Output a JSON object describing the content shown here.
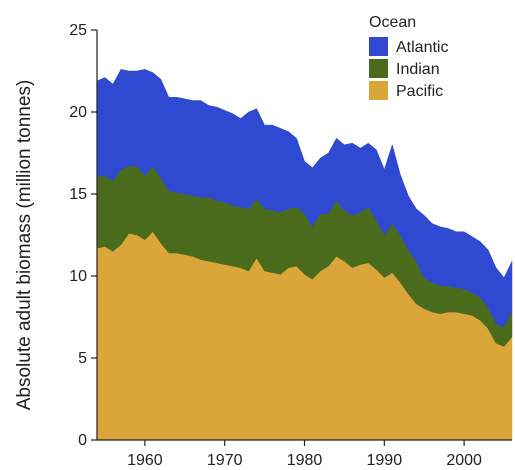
{
  "chart_data": {
    "type": "area",
    "stacked": true,
    "title": "",
    "xlabel": "",
    "ylabel": "Absolute adult biomass (million tonnes)",
    "xlim": [
      1954,
      2006
    ],
    "ylim": [
      0,
      25
    ],
    "x_ticks": [
      1960,
      1970,
      1980,
      1990,
      2000
    ],
    "y_ticks": [
      0,
      5,
      10,
      15,
      20,
      25
    ],
    "grid": false,
    "legend": {
      "title": "Ocean",
      "position": "top-right"
    },
    "x": [
      1954,
      1955,
      1956,
      1957,
      1958,
      1959,
      1960,
      1961,
      1962,
      1963,
      1964,
      1965,
      1966,
      1967,
      1968,
      1969,
      1970,
      1971,
      1972,
      1973,
      1974,
      1975,
      1976,
      1977,
      1978,
      1979,
      1980,
      1981,
      1982,
      1983,
      1984,
      1985,
      1986,
      1987,
      1988,
      1989,
      1990,
      1991,
      1992,
      1993,
      1994,
      1995,
      1996,
      1997,
      1998,
      1999,
      2000,
      2001,
      2002,
      2003,
      2004,
      2005,
      2006
    ],
    "series": [
      {
        "name": "Pacific",
        "color": "#DAA63A",
        "values": [
          11.7,
          11.8,
          11.5,
          11.9,
          12.6,
          12.5,
          12.2,
          12.7,
          12.0,
          11.4,
          11.4,
          11.3,
          11.2,
          11.0,
          10.9,
          10.8,
          10.7,
          10.6,
          10.5,
          10.3,
          11.1,
          10.3,
          10.2,
          10.1,
          10.5,
          10.6,
          10.1,
          9.8,
          10.3,
          10.6,
          11.2,
          10.9,
          10.5,
          10.7,
          10.8,
          10.4,
          9.9,
          10.2,
          9.6,
          8.9,
          8.3,
          8.0,
          7.8,
          7.7,
          7.8,
          7.8,
          7.7,
          7.6,
          7.3,
          6.8,
          5.9,
          5.7,
          6.3
        ]
      },
      {
        "name": "Indian",
        "color": "#4A6B1C",
        "values": [
          4.4,
          4.3,
          4.3,
          4.6,
          4.1,
          4.2,
          3.9,
          4.0,
          4.0,
          3.8,
          3.7,
          3.7,
          3.7,
          3.8,
          3.9,
          3.8,
          3.8,
          3.7,
          3.7,
          3.8,
          3.6,
          3.8,
          3.8,
          3.8,
          3.6,
          3.6,
          3.7,
          3.2,
          3.5,
          3.2,
          3.4,
          3.1,
          3.2,
          3.2,
          3.4,
          3.0,
          2.6,
          3.0,
          2.9,
          2.7,
          2.6,
          1.9,
          1.8,
          1.7,
          1.6,
          1.5,
          1.5,
          1.4,
          1.4,
          1.3,
          1.2,
          1.2,
          1.6
        ]
      },
      {
        "name": "Atlantic",
        "color": "#2F49D0",
        "values": [
          5.8,
          6.0,
          5.9,
          6.1,
          5.8,
          5.8,
          6.5,
          5.7,
          6.0,
          5.7,
          5.8,
          5.8,
          5.8,
          5.9,
          5.6,
          5.7,
          5.6,
          5.6,
          5.4,
          5.9,
          5.5,
          5.1,
          5.2,
          5.1,
          4.7,
          4.2,
          3.2,
          3.6,
          3.4,
          3.7,
          3.8,
          4.0,
          4.4,
          3.9,
          3.9,
          4.3,
          4.0,
          4.8,
          3.7,
          3.3,
          3.2,
          3.8,
          3.6,
          3.6,
          3.5,
          3.4,
          3.5,
          3.4,
          3.4,
          3.5,
          3.4,
          3.0,
          3.0
        ]
      }
    ]
  }
}
